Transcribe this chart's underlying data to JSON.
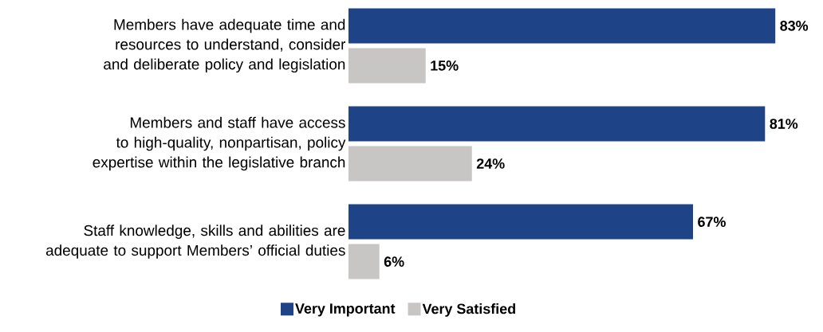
{
  "chart_data": {
    "type": "bar",
    "orientation": "horizontal",
    "legend": "bottom",
    "categories": [
      "Members have adequate time and resources to understand, consider and deliberate policy and legislation",
      "Members and staff have access to high-quality, nonpartisan, policy expertise within the legislative branch",
      "Staff knowledge, skills and abilities are adequate to support Members’ official duties"
    ],
    "series": [
      {
        "name": "Very Important",
        "color": "#1f4387",
        "values": [
          83,
          81,
          67
        ],
        "value_labels": [
          "83%",
          "81%",
          "67%"
        ]
      },
      {
        "name": "Very Satisfied",
        "color": "#c8c6c4",
        "values": [
          15,
          24,
          6
        ],
        "value_labels": [
          "15%",
          "24%",
          "6%"
        ]
      }
    ]
  }
}
